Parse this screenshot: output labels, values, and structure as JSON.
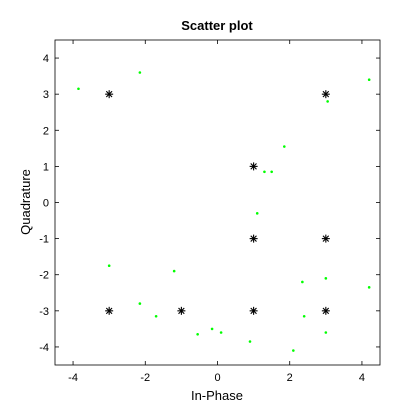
{
  "chart_data": {
    "type": "scatter",
    "title": "Scatter plot",
    "xlabel": "In-Phase",
    "ylabel": "Quadrature",
    "xlim": [
      -4.5,
      4.5
    ],
    "ylim": [
      -4.5,
      4.5
    ],
    "xticks": [
      -4,
      -2,
      0,
      2,
      4
    ],
    "yticks": [
      -4,
      -3,
      -2,
      -1,
      0,
      1,
      2,
      3,
      4
    ],
    "xtick_labels": [
      "-4",
      "-2",
      "0",
      "2",
      "4"
    ],
    "ytick_labels": [
      "-4",
      "-3",
      "-2",
      "-1",
      "0",
      "1",
      "2",
      "3",
      "4"
    ],
    "grid": false,
    "series": [
      {
        "marker": "dot",
        "color": "#00ff00",
        "points": [
          {
            "x": -3.85,
            "y": 3.15
          },
          {
            "x": -2.15,
            "y": 3.6
          },
          {
            "x": 4.2,
            "y": 3.4
          },
          {
            "x": 3.05,
            "y": 2.8
          },
          {
            "x": 1.85,
            "y": 1.55
          },
          {
            "x": 1.3,
            "y": 0.85
          },
          {
            "x": 1.5,
            "y": 0.85
          },
          {
            "x": 1.1,
            "y": -0.3
          },
          {
            "x": -3.0,
            "y": -1.75
          },
          {
            "x": -1.2,
            "y": -1.9
          },
          {
            "x": 3.0,
            "y": -2.1
          },
          {
            "x": 2.35,
            "y": -2.2
          },
          {
            "x": 4.2,
            "y": -2.35
          },
          {
            "x": -2.15,
            "y": -2.8
          },
          {
            "x": -1.7,
            "y": -3.15
          },
          {
            "x": 2.4,
            "y": -3.15
          },
          {
            "x": -0.15,
            "y": -3.5
          },
          {
            "x": 0.1,
            "y": -3.6
          },
          {
            "x": -0.55,
            "y": -3.65
          },
          {
            "x": 3.0,
            "y": -3.6
          },
          {
            "x": 0.9,
            "y": -3.85
          },
          {
            "x": 2.1,
            "y": -4.1
          }
        ]
      },
      {
        "marker": "asterisk",
        "color": "#000000",
        "points": [
          {
            "x": -3,
            "y": 3
          },
          {
            "x": 3,
            "y": 3
          },
          {
            "x": 1,
            "y": 1
          },
          {
            "x": 1,
            "y": -1
          },
          {
            "x": 3,
            "y": -1
          },
          {
            "x": -3,
            "y": -3
          },
          {
            "x": -1,
            "y": -3
          },
          {
            "x": 1,
            "y": -3
          },
          {
            "x": 3,
            "y": -3
          }
        ]
      }
    ]
  }
}
